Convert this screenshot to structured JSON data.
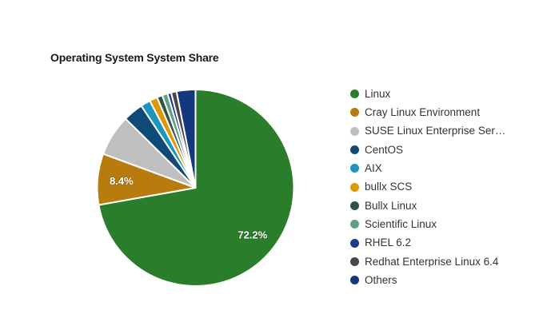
{
  "chart_data": {
    "type": "pie",
    "title": "Operating System System Share",
    "legend_position": "right",
    "grid": false,
    "series": [
      {
        "name": "Linux",
        "value": 72.2,
        "color": "#2A7E2B",
        "data_label": "72.2%"
      },
      {
        "name": "Cray Linux Environment",
        "value": 8.4,
        "color": "#B87B0D",
        "data_label": "8.4%"
      },
      {
        "name": "SUSE Linux Enterprise Server",
        "value": 6.8,
        "color": "#BFBFBF",
        "legend_label": "SUSE Linux Enterprise Ser…"
      },
      {
        "name": "CentOS",
        "value": 3.3,
        "color": "#104A77"
      },
      {
        "name": "AIX",
        "value": 1.6,
        "color": "#1D96BE"
      },
      {
        "name": "bullx SCS",
        "value": 1.3,
        "color": "#DE9707"
      },
      {
        "name": "Bullx Linux",
        "value": 0.9,
        "color": "#2F5241"
      },
      {
        "name": "Scientific Linux",
        "value": 0.9,
        "color": "#61A183"
      },
      {
        "name": "RHEL 6.2",
        "value": 0.6,
        "color": "#1A3C8C"
      },
      {
        "name": "Redhat Enterprise Linux 6.4",
        "value": 0.9,
        "color": "#474747"
      },
      {
        "name": "Others",
        "value": 3.1,
        "color": "#13387D"
      }
    ]
  }
}
